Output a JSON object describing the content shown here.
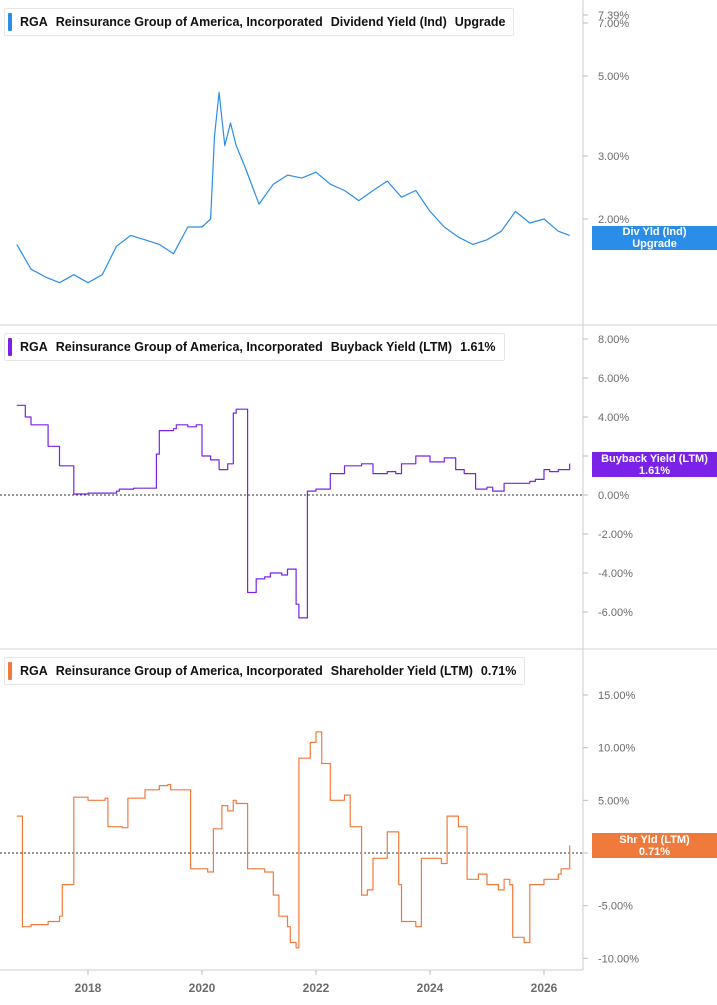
{
  "company": {
    "ticker": "RGA",
    "name": "Reinsurance Group of America, Incorporated"
  },
  "x_axis": {
    "ticks": [
      "2018",
      "2020",
      "2022",
      "2024",
      "2026"
    ]
  },
  "colors": {
    "dividend": "#2a8ee8",
    "buyback": "#7a22e8",
    "shareholder": "#f07a3c",
    "axis_text": "#6b6b6b"
  },
  "panels": [
    {
      "metric": "Dividend Yield (Ind)",
      "value": "Upgrade",
      "tag_line1": "Div Yld (Ind)",
      "tag_line2": "Upgrade",
      "y_ticks": [
        "7.39%",
        "7.00%",
        "5.00%",
        "3.00%",
        "2.00%"
      ]
    },
    {
      "metric": "Buyback Yield (LTM)",
      "value": "1.61%",
      "tag_line1": "Buyback Yield (LTM)",
      "tag_line2": "1.61%",
      "y_ticks": [
        "8.00%",
        "6.00%",
        "4.00%",
        "2.00%",
        "0.00%",
        "-2.00%",
        "-4.00%",
        "-6.00%"
      ]
    },
    {
      "metric": "Shareholder Yield (LTM)",
      "value": "0.71%",
      "tag_line1": "Shr Yld (LTM)",
      "tag_line2": "0.71%",
      "y_ticks": [
        "15.00%",
        "10.00%",
        "5.00%",
        "0.00%",
        "-5.00%",
        "-10.00%"
      ]
    }
  ],
  "chart_data": [
    {
      "type": "line",
      "title": "RGA Reinsurance Group of America, Incorporated Dividend Yield (Ind)",
      "y_scale": "log",
      "ylim": [
        1.1,
        7.39
      ],
      "series": [
        {
          "name": "Dividend Yield (Ind)",
          "x": [
            2016.75,
            2017.0,
            2017.25,
            2017.5,
            2017.75,
            2018.0,
            2018.25,
            2018.5,
            2018.75,
            2019.0,
            2019.25,
            2019.5,
            2019.75,
            2020.0,
            2020.15,
            2020.22,
            2020.3,
            2020.4,
            2020.5,
            2020.6,
            2020.75,
            2021.0,
            2021.25,
            2021.5,
            2021.75,
            2022.0,
            2022.25,
            2022.5,
            2022.75,
            2023.0,
            2023.25,
            2023.5,
            2023.75,
            2024.0,
            2024.25,
            2024.5,
            2024.75,
            2025.0,
            2025.25,
            2025.5,
            2025.75,
            2026.0,
            2026.25,
            2026.45
          ],
          "values": [
            1.7,
            1.45,
            1.38,
            1.33,
            1.4,
            1.33,
            1.4,
            1.68,
            1.8,
            1.75,
            1.7,
            1.6,
            1.9,
            1.9,
            2.0,
            3.4,
            4.5,
            3.2,
            3.7,
            3.2,
            2.8,
            2.2,
            2.5,
            2.65,
            2.6,
            2.7,
            2.5,
            2.4,
            2.25,
            2.4,
            2.55,
            2.3,
            2.4,
            2.1,
            1.9,
            1.78,
            1.7,
            1.75,
            1.85,
            2.1,
            1.95,
            2.0,
            1.85,
            1.8
          ]
        }
      ]
    },
    {
      "type": "line",
      "title": "RGA Reinsurance Group of America, Incorporated Buyback Yield (LTM)",
      "ylim": [
        -7,
        8
      ],
      "series": [
        {
          "name": "Buyback Yield (LTM)",
          "x": [
            2016.75,
            2016.9,
            2017.0,
            2017.3,
            2017.5,
            2017.75,
            2018.0,
            2018.5,
            2018.55,
            2018.8,
            2019.2,
            2019.25,
            2019.5,
            2019.55,
            2019.75,
            2019.9,
            2020.0,
            2020.15,
            2020.3,
            2020.45,
            2020.55,
            2020.6,
            2020.8,
            2020.95,
            2021.1,
            2021.2,
            2021.3,
            2021.4,
            2021.5,
            2021.65,
            2021.7,
            2021.85,
            2022.0,
            2022.25,
            2022.5,
            2022.8,
            2023.0,
            2023.25,
            2023.4,
            2023.5,
            2023.75,
            2024.0,
            2024.25,
            2024.45,
            2024.6,
            2024.8,
            2025.0,
            2025.1,
            2025.3,
            2025.5,
            2025.75,
            2025.85,
            2026.0,
            2026.1,
            2026.25,
            2026.45
          ],
          "values": [
            4.6,
            4.0,
            3.6,
            2.5,
            1.5,
            0.05,
            0.1,
            0.2,
            0.3,
            0.35,
            2.1,
            3.3,
            3.4,
            3.6,
            3.5,
            3.6,
            2.0,
            1.8,
            1.3,
            1.6,
            4.2,
            4.4,
            -5.0,
            -4.3,
            -4.2,
            -4.0,
            -4.0,
            -4.1,
            -3.8,
            -5.6,
            -6.3,
            0.2,
            0.3,
            1.1,
            1.5,
            1.6,
            1.1,
            1.2,
            1.1,
            1.6,
            2.0,
            1.7,
            1.9,
            1.3,
            1.1,
            0.3,
            0.4,
            0.2,
            0.6,
            0.6,
            0.7,
            0.8,
            1.3,
            1.2,
            1.3,
            1.61
          ]
        }
      ]
    },
    {
      "type": "line",
      "title": "RGA Reinsurance Group of America, Incorporated Shareholder Yield (LTM)",
      "ylim": [
        -11,
        18
      ],
      "series": [
        {
          "name": "Shareholder Yield (LTM)",
          "x": [
            2016.75,
            2016.85,
            2017.0,
            2017.3,
            2017.5,
            2017.55,
            2017.75,
            2018.0,
            2018.3,
            2018.35,
            2018.6,
            2018.7,
            2019.0,
            2019.25,
            2019.4,
            2019.45,
            2019.8,
            2020.0,
            2020.1,
            2020.2,
            2020.35,
            2020.45,
            2020.55,
            2020.6,
            2020.8,
            2021.0,
            2021.1,
            2021.25,
            2021.35,
            2021.5,
            2021.55,
            2021.65,
            2021.7,
            2021.9,
            2022.0,
            2022.1,
            2022.25,
            2022.5,
            2022.6,
            2022.8,
            2022.9,
            2023.0,
            2023.25,
            2023.3,
            2023.45,
            2023.5,
            2023.75,
            2023.85,
            2024.0,
            2024.2,
            2024.3,
            2024.5,
            2024.65,
            2024.85,
            2025.0,
            2025.2,
            2025.3,
            2025.4,
            2025.45,
            2025.65,
            2025.75,
            2026.0,
            2026.25,
            2026.3,
            2026.45
          ],
          "values": [
            3.5,
            -7.0,
            -6.8,
            -6.5,
            -6.0,
            -3.0,
            5.3,
            5.0,
            5.2,
            2.5,
            2.4,
            5.2,
            6.0,
            6.4,
            6.5,
            6.0,
            -1.5,
            -1.5,
            -1.8,
            2.3,
            4.5,
            4.0,
            5.0,
            4.7,
            -1.5,
            -1.5,
            -1.8,
            -4.0,
            -6.0,
            -7.0,
            -8.5,
            -9.0,
            9.0,
            10.5,
            11.5,
            8.5,
            5.0,
            5.5,
            2.5,
            -4.0,
            -3.5,
            -0.5,
            2.0,
            2.0,
            -3.0,
            -6.5,
            -7.0,
            -0.5,
            -0.5,
            -1.0,
            3.5,
            2.5,
            -2.5,
            -2.0,
            -3.0,
            -3.5,
            -2.5,
            -3.0,
            -8.0,
            -8.5,
            -3.0,
            -2.5,
            -2.0,
            -1.5,
            0.71
          ]
        }
      ]
    }
  ]
}
